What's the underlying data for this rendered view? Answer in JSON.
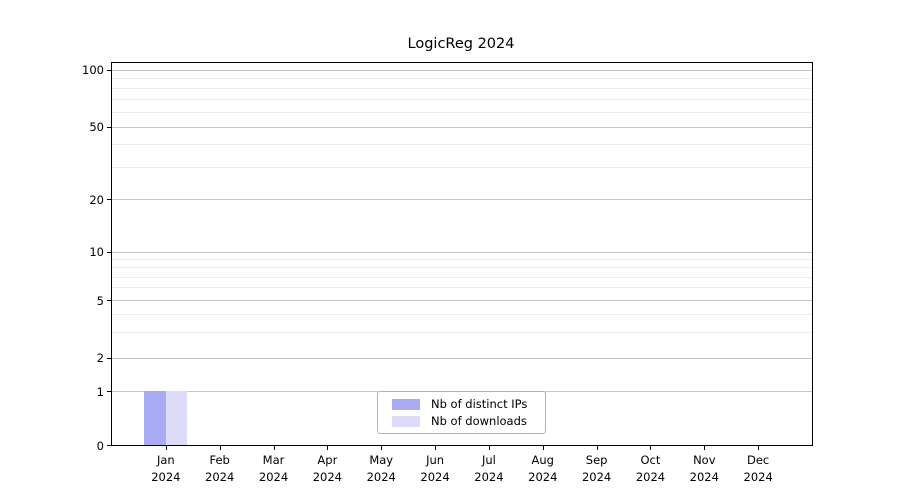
{
  "chart_data": {
    "type": "bar",
    "title": "LogicReg 2024",
    "categories": [
      "Jan",
      "Feb",
      "Mar",
      "Apr",
      "May",
      "Jun",
      "Jul",
      "Aug",
      "Sep",
      "Oct",
      "Nov",
      "Dec"
    ],
    "category_year": "2024",
    "series": [
      {
        "name": "Nb of distinct IPs",
        "color": "#a9aaf4",
        "values": [
          1,
          0,
          0,
          0,
          0,
          0,
          0,
          0,
          0,
          0,
          0,
          0
        ]
      },
      {
        "name": "Nb of downloads",
        "color": "#dcdcf8",
        "values": [
          1,
          0,
          0,
          0,
          0,
          0,
          0,
          0,
          0,
          0,
          0,
          0
        ]
      }
    ],
    "yticks": [
      0,
      1,
      2,
      5,
      10,
      20,
      50,
      100
    ],
    "minor_yticks": [
      3,
      4,
      6,
      7,
      8,
      9,
      30,
      40,
      60,
      70,
      80,
      90
    ],
    "scale": "symlog",
    "ylim": [
      0,
      110
    ],
    "grid": "horizontal",
    "legend_position": "bottom-center"
  }
}
